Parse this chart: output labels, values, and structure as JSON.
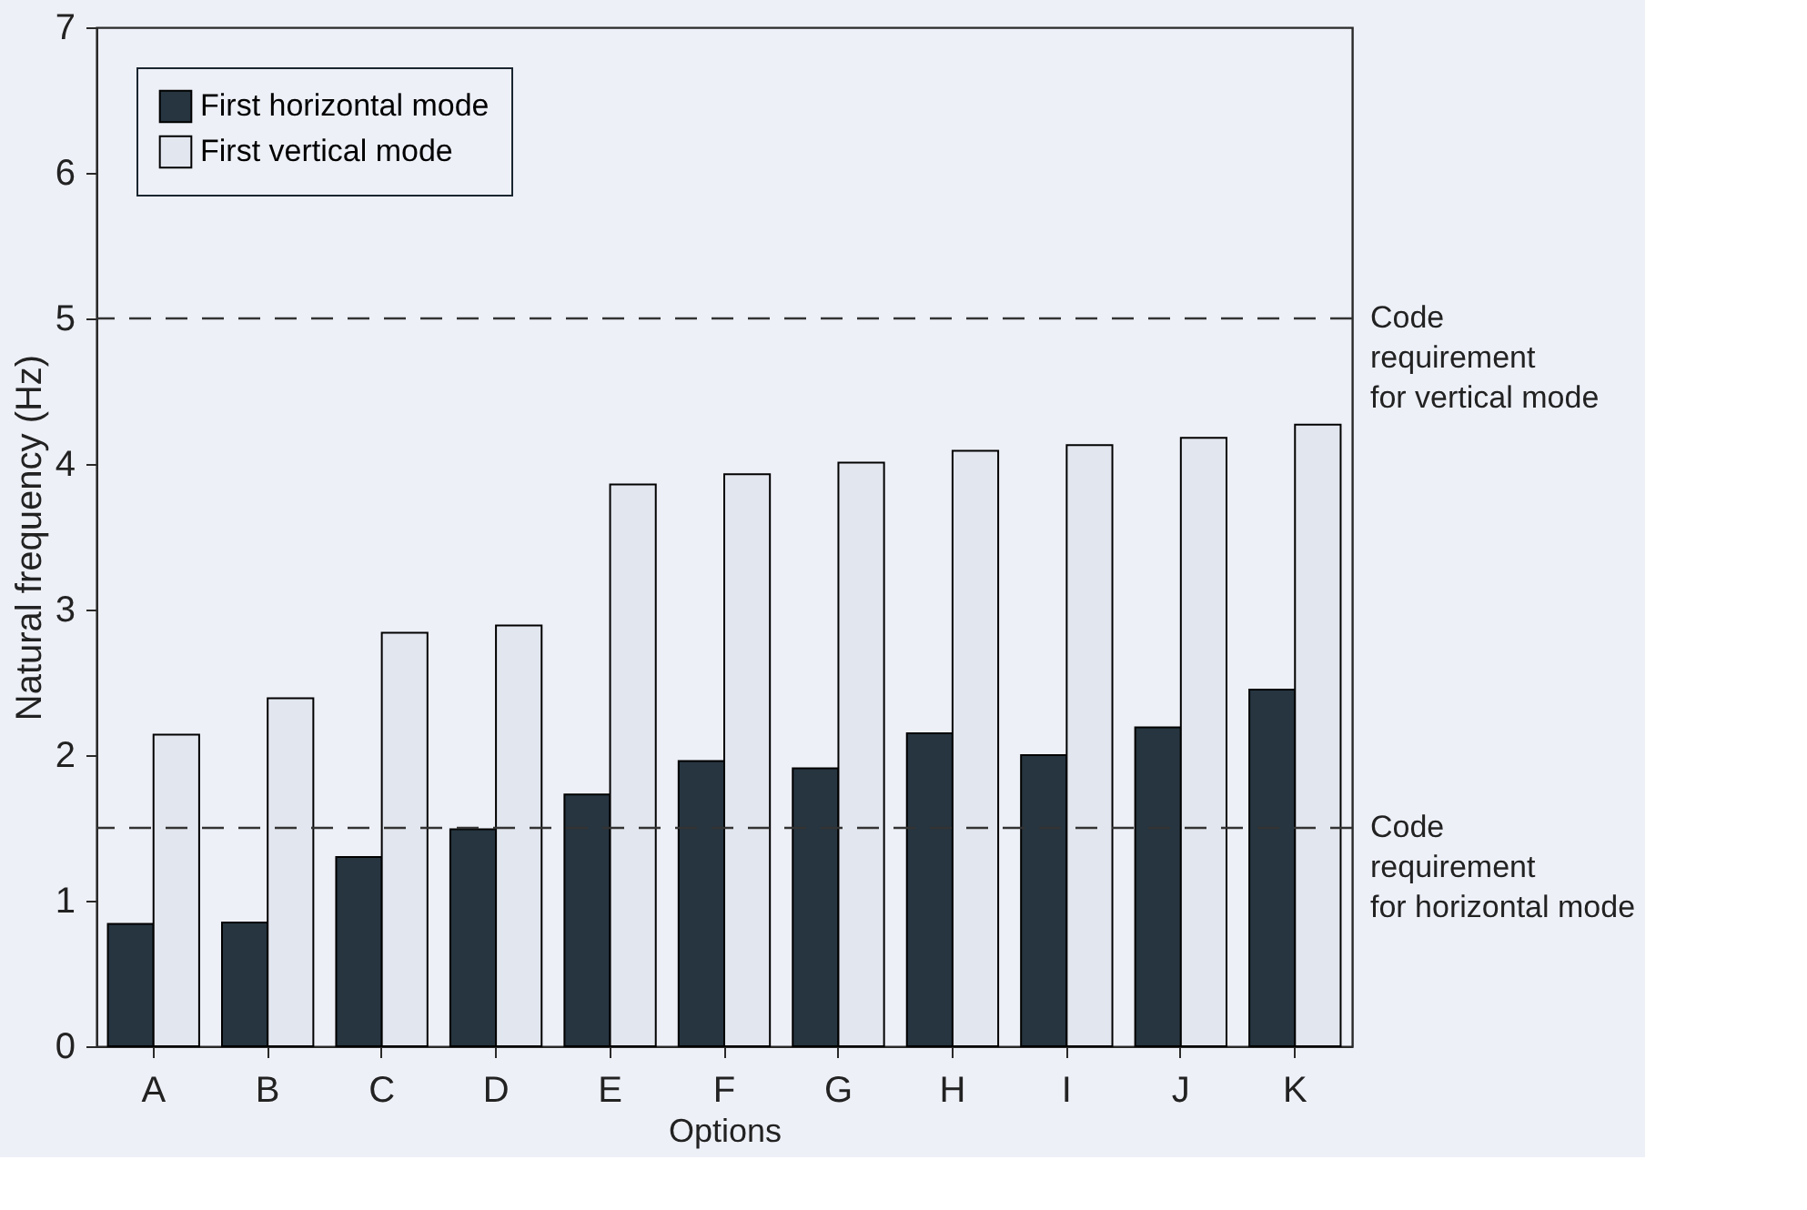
{
  "chart_data": {
    "type": "bar",
    "xlabel": "Options",
    "ylabel": "Natural frequency (Hz)",
    "categories": [
      "A",
      "B",
      "C",
      "D",
      "E",
      "F",
      "G",
      "H",
      "I",
      "J",
      "K"
    ],
    "series": [
      {
        "name": "First horizontal mode",
        "color": "#263540",
        "values": [
          0.84,
          0.85,
          1.3,
          1.49,
          1.73,
          1.96,
          1.91,
          2.15,
          2.0,
          2.19,
          2.45
        ]
      },
      {
        "name": "First vertical mode",
        "color": "#e2e6ee",
        "values": [
          2.14,
          2.39,
          2.84,
          2.89,
          3.86,
          3.93,
          4.01,
          4.09,
          4.13,
          4.18,
          4.27
        ]
      }
    ],
    "ylim": [
      0,
      7
    ],
    "yticks": [
      0,
      1,
      2,
      3,
      4,
      5,
      6,
      7
    ],
    "ref_lines": [
      {
        "axis": "y",
        "value": 5,
        "label": "Code\nrequirement\nfor vertical mode",
        "color": "#333333",
        "line_style": "dashed"
      },
      {
        "axis": "y",
        "value": 1.5,
        "label": "Code\nrequirement\nfor horizontal mode",
        "color": "#333333",
        "line_style": "dashed"
      }
    ],
    "grid": false,
    "legend": "top left"
  }
}
